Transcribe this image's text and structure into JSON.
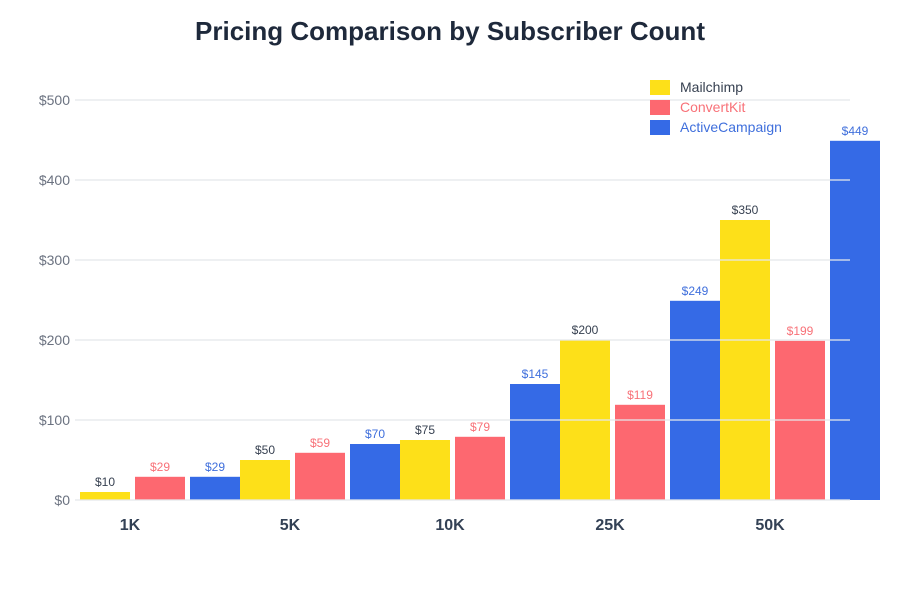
{
  "chart_data": {
    "type": "bar",
    "title": "Pricing Comparison by Subscriber Count",
    "xlabel": "",
    "ylabel": "",
    "categories": [
      "1K",
      "5K",
      "10K",
      "25K",
      "50K"
    ],
    "series": [
      {
        "name": "Mailchimp",
        "color": "#fde019",
        "label_color": "#374151",
        "values": [
          10,
          50,
          75,
          200,
          350
        ]
      },
      {
        "name": "ConvertKit",
        "color": "#fd6870",
        "label_color": "#f87178",
        "values": [
          29,
          59,
          79,
          119,
          199
        ]
      },
      {
        "name": "ActiveCampaign",
        "color": "#356ae6",
        "label_color": "#3f6fdc",
        "values": [
          29,
          70,
          145,
          249,
          449
        ]
      }
    ],
    "value_label_prefix": "$",
    "ylim": [
      0,
      500
    ],
    "yticks": [
      0,
      100,
      200,
      300,
      400,
      500
    ],
    "ytick_labels": [
      "$0",
      "$100",
      "$200",
      "$300",
      "$400",
      "$500"
    ],
    "grid": true,
    "legend_position": "top-right"
  }
}
